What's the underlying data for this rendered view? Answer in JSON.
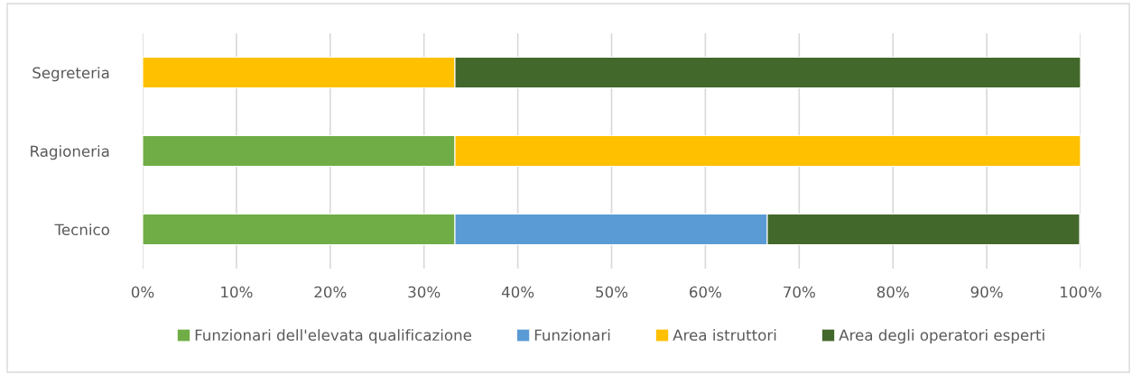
{
  "chart_data": {
    "type": "bar",
    "orientation": "horizontal",
    "stacked": true,
    "categories": [
      "Segreteria",
      "Ragioneria",
      "Tecnico"
    ],
    "series": [
      {
        "name": "Funzionari dell'elevata qualificazione",
        "color": "#70ad47",
        "values": [
          null,
          33.3,
          33.3
        ]
      },
      {
        "name": "Funzionari",
        "color": "#5b9bd5",
        "values": [
          null,
          null,
          33.3
        ]
      },
      {
        "name": "Area istruttori",
        "color": "#ffc000",
        "values": [
          33.3,
          66.7,
          null
        ]
      },
      {
        "name": "Area degli operatori esperti",
        "color": "#43682b",
        "values": [
          66.7,
          null,
          33.3
        ]
      }
    ],
    "xlim": [
      0,
      100
    ],
    "xticks": [
      {
        "value": 0,
        "label": "0%"
      },
      {
        "value": 10,
        "label": "10%"
      },
      {
        "value": 20,
        "label": "20%"
      },
      {
        "value": 30,
        "label": "30%"
      },
      {
        "value": 40,
        "label": "40%"
      },
      {
        "value": 50,
        "label": "50%"
      },
      {
        "value": 60,
        "label": "60%"
      },
      {
        "value": 70,
        "label": "70%"
      },
      {
        "value": 80,
        "label": "80%"
      },
      {
        "value": 90,
        "label": "90%"
      },
      {
        "value": 100,
        "label": "100%"
      }
    ],
    "grid": "x",
    "legend": "bottom"
  }
}
